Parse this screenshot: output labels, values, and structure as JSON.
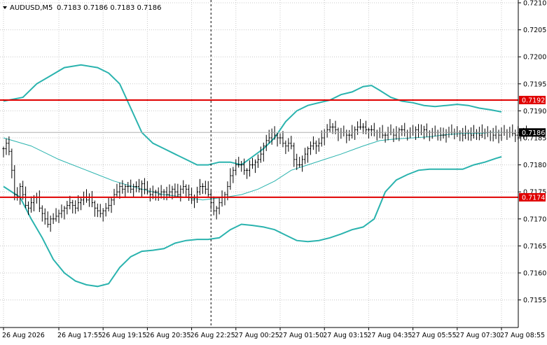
{
  "header": {
    "symbol_label": "AUDUSD,M5",
    "ohlc_text": "0.7183 0.7186 0.7183 0.7186"
  },
  "colors": {
    "background": "#ffffff",
    "grid": "#c8c8c8",
    "band": "#2ab3ae",
    "candle": "#000000",
    "level_line": "#e00000",
    "current_price_tag_bg": "#000000",
    "current_price_tag_fg": "#ffffff",
    "level_tag_bg": "#e00000",
    "level_tag_fg": "#ffffff",
    "vline": "#000000"
  },
  "chart_data": {
    "type": "candlestick",
    "instrument": "AUDUSD",
    "timeframe": "M5",
    "ylim": [
      0.71505,
      0.72105
    ],
    "y_ticks": [
      "0.7210",
      "0.7205",
      "0.7200",
      "0.7195",
      "0.7190",
      "0.7185",
      "0.7180",
      "0.7175",
      "0.7170",
      "0.7165",
      "0.7160",
      "0.7155"
    ],
    "x_ticks": [
      {
        "label": "26 Aug 2026",
        "bar": 0
      },
      {
        "label": "26 Aug 17:55",
        "bar": 20
      },
      {
        "label": "26 Aug 19:15",
        "bar": 36
      },
      {
        "label": "26 Aug 20:35",
        "bar": 52
      },
      {
        "label": "26 Aug 22:25",
        "bar": 68
      },
      {
        "label": "27 Aug 00:25",
        "bar": 84
      },
      {
        "label": "27 Aug 01:50",
        "bar": 100
      },
      {
        "label": "27 Aug 03:15",
        "bar": 116
      },
      {
        "label": "27 Aug 04:35",
        "bar": 132
      },
      {
        "label": "27 Aug 05:55",
        "bar": 148
      },
      {
        "label": "27 Aug 07:30",
        "bar": 164
      },
      {
        "label": "27 Aug 08:55",
        "bar": 180
      }
    ],
    "grid": true,
    "current_price": "0.7186",
    "horizontal_levels": [
      {
        "label": "0.7192",
        "value": 0.7192
      },
      {
        "label": "0.7174",
        "value": 0.7174
      }
    ],
    "vertical_marker_bar": 75,
    "close": [
      0.7183,
      0.7184,
      0.71825,
      0.7179,
      0.71745,
      0.7174,
      0.7176,
      0.71745,
      0.71725,
      0.7172,
      0.7173,
      0.7174,
      0.7174,
      0.7172,
      0.7171,
      0.717,
      0.7169,
      0.717,
      0.717,
      0.71705,
      0.7171,
      0.71715,
      0.7172,
      0.71725,
      0.7173,
      0.71725,
      0.7172,
      0.7173,
      0.71735,
      0.7174,
      0.71735,
      0.7174,
      0.7173,
      0.7172,
      0.71715,
      0.7171,
      0.71715,
      0.7172,
      0.71725,
      0.71735,
      0.71745,
      0.7175,
      0.7176,
      0.71755,
      0.7176,
      0.7176,
      0.71755,
      0.7176,
      0.7176,
      0.71755,
      0.71765,
      0.71755,
      0.7175,
      0.71745,
      0.7175,
      0.7175,
      0.71745,
      0.7175,
      0.7175,
      0.71745,
      0.7175,
      0.71755,
      0.7175,
      0.71745,
      0.71755,
      0.7176,
      0.71755,
      0.71745,
      0.71735,
      0.7174,
      0.7175,
      0.7176,
      0.7176,
      0.71755,
      0.71745,
      0.7173,
      0.71715,
      0.7172,
      0.7173,
      0.7174,
      0.71745,
      0.7176,
      0.7178,
      0.7179,
      0.718,
      0.718,
      0.718,
      0.7179,
      0.7179,
      0.718,
      0.718,
      0.71805,
      0.7181,
      0.7182,
      0.71835,
      0.71845,
      0.7185,
      0.7186,
      0.71855,
      0.7185,
      0.7185,
      0.7184,
      0.71835,
      0.7184,
      0.71835,
      0.7181,
      0.718,
      0.718,
      0.7181,
      0.7182,
      0.7183,
      0.71835,
      0.7184,
      0.71835,
      0.7184,
      0.7185,
      0.7186,
      0.71865,
      0.7187,
      0.7187,
      0.71865,
      0.7186,
      0.7186,
      0.7186,
      0.71855,
      0.71855,
      0.7186,
      0.71865,
      0.7187,
      0.7187,
      0.7187,
      0.71865,
      0.71865,
      0.71865,
      0.7186,
      0.7186,
      0.7186,
      0.71855,
      0.71855,
      0.7186,
      0.7186,
      0.71855,
      0.7186,
      0.71865,
      0.71865,
      0.7186,
      0.7186,
      0.7186,
      0.7186,
      0.71865,
      0.7186,
      0.7186,
      0.71865,
      0.7186,
      0.7186,
      0.7186,
      0.7186,
      0.7186,
      0.71855,
      0.71855,
      0.7186,
      0.7186,
      0.7186,
      0.7186,
      0.7186,
      0.7186,
      0.71855,
      0.7186,
      0.7186,
      0.71855,
      0.7186,
      0.7186,
      0.71855,
      0.7186,
      0.7186,
      0.7186,
      0.7186,
      0.71855,
      0.7186,
      0.71855,
      0.7186,
      0.7186,
      0.7186,
      0.7186,
      0.71858,
      0.71855,
      0.7186,
      0.7186,
      0.7186,
      0.7186
    ],
    "upper_band": [
      [
        0,
        0.71918
      ],
      [
        7,
        0.71925
      ],
      [
        12,
        0.7195
      ],
      [
        17,
        0.71965
      ],
      [
        22,
        0.7198
      ],
      [
        28,
        0.71985
      ],
      [
        34,
        0.7198
      ],
      [
        38,
        0.7197
      ],
      [
        42,
        0.7195
      ],
      [
        46,
        0.71905
      ],
      [
        50,
        0.7186
      ],
      [
        54,
        0.7184
      ],
      [
        58,
        0.7183
      ],
      [
        62,
        0.7182
      ],
      [
        66,
        0.7181
      ],
      [
        70,
        0.718
      ],
      [
        74,
        0.718
      ],
      [
        78,
        0.71805
      ],
      [
        82,
        0.71805
      ],
      [
        86,
        0.718
      ],
      [
        90,
        0.71815
      ],
      [
        94,
        0.7183
      ],
      [
        98,
        0.7185
      ],
      [
        102,
        0.7188
      ],
      [
        106,
        0.719
      ],
      [
        110,
        0.7191
      ],
      [
        114,
        0.71915
      ],
      [
        118,
        0.7192
      ],
      [
        122,
        0.7193
      ],
      [
        126,
        0.71935
      ],
      [
        130,
        0.71945
      ],
      [
        133,
        0.71947
      ],
      [
        136,
        0.71938
      ],
      [
        140,
        0.71925
      ],
      [
        144,
        0.71918
      ],
      [
        148,
        0.71915
      ],
      [
        152,
        0.7191
      ],
      [
        156,
        0.71908
      ],
      [
        160,
        0.7191
      ],
      [
        164,
        0.71912
      ],
      [
        168,
        0.7191
      ],
      [
        172,
        0.71905
      ],
      [
        176,
        0.71902
      ],
      [
        180,
        0.71898
      ]
    ],
    "middle_band": [
      [
        0,
        0.7185
      ],
      [
        10,
        0.71835
      ],
      [
        20,
        0.7181
      ],
      [
        30,
        0.7179
      ],
      [
        40,
        0.7177
      ],
      [
        50,
        0.71755
      ],
      [
        58,
        0.71745
      ],
      [
        66,
        0.7174
      ],
      [
        72,
        0.71735
      ],
      [
        80,
        0.7174
      ],
      [
        86,
        0.71745
      ],
      [
        92,
        0.71755
      ],
      [
        98,
        0.7177
      ],
      [
        104,
        0.7179
      ],
      [
        110,
        0.718
      ],
      [
        116,
        0.7181
      ],
      [
        122,
        0.7182
      ],
      [
        130,
        0.71835
      ],
      [
        136,
        0.71845
      ],
      [
        142,
        0.71848
      ],
      [
        148,
        0.7185
      ],
      [
        154,
        0.71852
      ],
      [
        160,
        0.71856
      ],
      [
        166,
        0.71858
      ],
      [
        172,
        0.71858
      ],
      [
        176,
        0.7186
      ],
      [
        180,
        0.7186
      ]
    ],
    "lower_band": [
      [
        0,
        0.7176
      ],
      [
        6,
        0.7174
      ],
      [
        10,
        0.717
      ],
      [
        14,
        0.71665
      ],
      [
        18,
        0.71625
      ],
      [
        22,
        0.716
      ],
      [
        26,
        0.71585
      ],
      [
        30,
        0.71578
      ],
      [
        34,
        0.71575
      ],
      [
        38,
        0.7158
      ],
      [
        42,
        0.7161
      ],
      [
        46,
        0.7163
      ],
      [
        50,
        0.7164
      ],
      [
        54,
        0.71642
      ],
      [
        58,
        0.71645
      ],
      [
        62,
        0.71655
      ],
      [
        66,
        0.7166
      ],
      [
        70,
        0.71662
      ],
      [
        74,
        0.71662
      ],
      [
        78,
        0.71665
      ],
      [
        82,
        0.7168
      ],
      [
        86,
        0.7169
      ],
      [
        90,
        0.71688
      ],
      [
        94,
        0.71685
      ],
      [
        98,
        0.7168
      ],
      [
        102,
        0.7167
      ],
      [
        106,
        0.7166
      ],
      [
        110,
        0.71658
      ],
      [
        114,
        0.7166
      ],
      [
        118,
        0.71665
      ],
      [
        122,
        0.71672
      ],
      [
        126,
        0.7168
      ],
      [
        130,
        0.71685
      ],
      [
        134,
        0.717
      ],
      [
        138,
        0.7175
      ],
      [
        142,
        0.71772
      ],
      [
        146,
        0.71782
      ],
      [
        150,
        0.7179
      ],
      [
        154,
        0.71792
      ],
      [
        158,
        0.71792
      ],
      [
        162,
        0.71792
      ],
      [
        166,
        0.71792
      ],
      [
        170,
        0.718
      ],
      [
        174,
        0.71805
      ],
      [
        178,
        0.71812
      ],
      [
        180,
        0.71815
      ]
    ]
  }
}
